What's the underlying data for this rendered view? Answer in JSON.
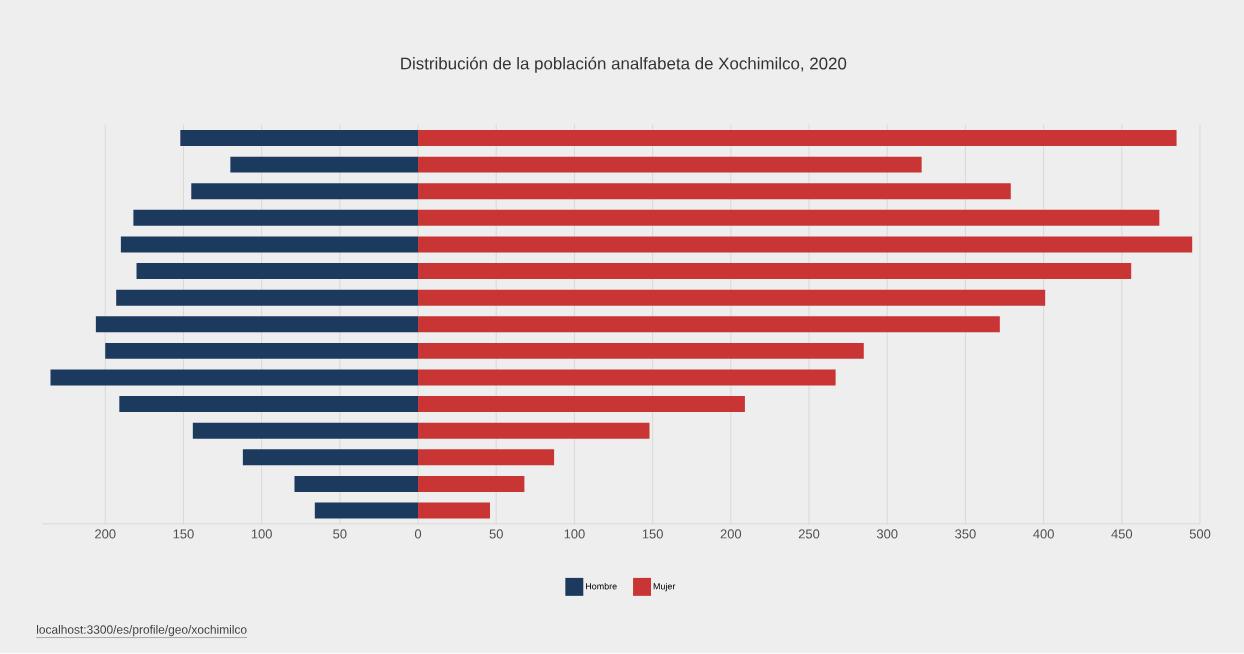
{
  "chart_data": {
    "type": "bar",
    "orientation": "horizontal",
    "title": "Distribución de la población analfabeta de Xochimilco, 2020",
    "categories": [
      null,
      null,
      null,
      null,
      null,
      null,
      null,
      null,
      null,
      null,
      null,
      null,
      null,
      null,
      null
    ],
    "series": [
      {
        "name": "Hombre",
        "color": "#1c3a5e",
        "values": [
          -152,
          -120,
          -145,
          -182,
          -190,
          -180,
          -193,
          -206,
          -200,
          -235,
          -191,
          -144,
          -112,
          -79,
          -66
        ]
      },
      {
        "name": "Mujer",
        "color": "#c93434",
        "values": [
          485,
          322,
          379,
          474,
          495,
          456,
          401,
          372,
          285,
          267,
          209,
          148,
          87,
          68,
          46
        ]
      }
    ],
    "xlim": [
      -240,
      500
    ],
    "stacked": true,
    "xticks": [
      {
        "value": -200,
        "label": "200"
      },
      {
        "value": -150,
        "label": "150"
      },
      {
        "value": -100,
        "label": "100"
      },
      {
        "value": -50,
        "label": "50"
      },
      0,
      50,
      100,
      150,
      200,
      250,
      300,
      350,
      400,
      450,
      500
    ],
    "grid": "x",
    "legend": "bottom",
    "annotations": [
      "localhost:3300/es/profile/geo/xochimilco"
    ]
  }
}
